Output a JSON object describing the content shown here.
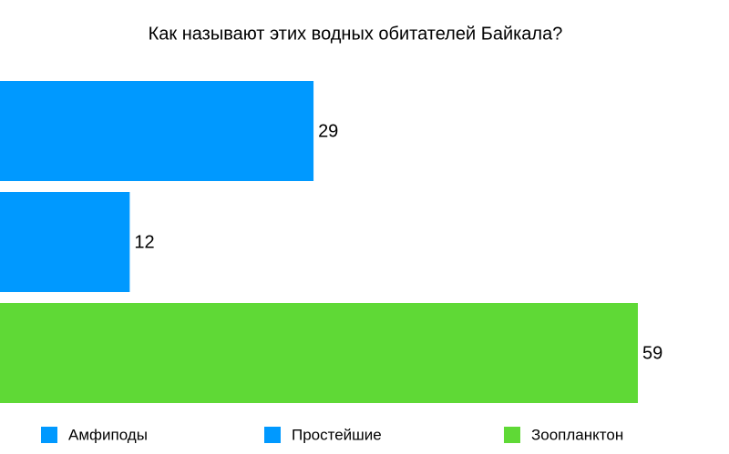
{
  "chart_data": {
    "type": "bar",
    "orientation": "horizontal",
    "title": "Как называют этих водных обитателей Байкала?",
    "categories": [
      "Амфиподы",
      "Простейшие",
      "Зоопланктон"
    ],
    "values": [
      29,
      12,
      59
    ],
    "colors": [
      "#0099ff",
      "#0099ff",
      "#5fd936"
    ],
    "legend": "bottom"
  }
}
